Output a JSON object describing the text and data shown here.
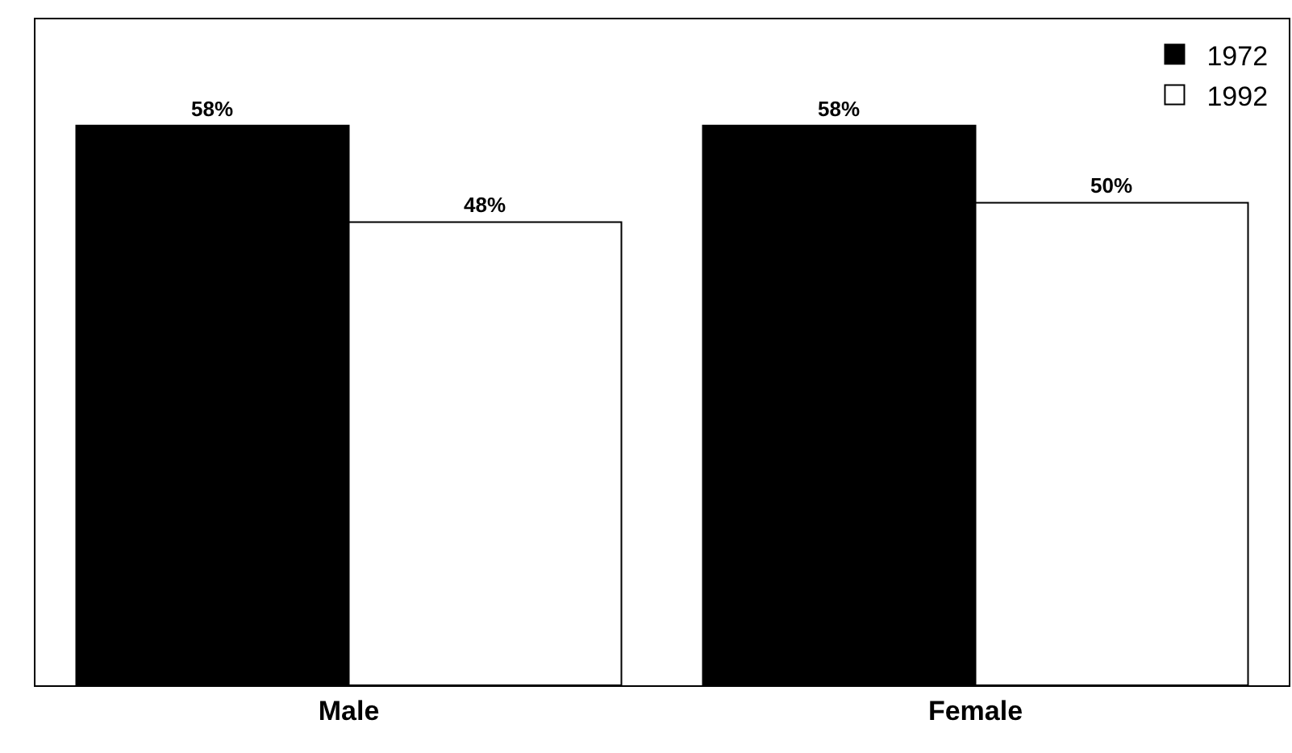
{
  "chart_data": {
    "type": "bar",
    "categories": [
      "Male",
      "Female"
    ],
    "series": [
      {
        "name": "1972",
        "color": "#000000",
        "values": [
          58,
          58
        ],
        "value_labels": [
          "58%",
          "58%"
        ]
      },
      {
        "name": "1992",
        "color": "#ffffff",
        "values": [
          48,
          50
        ],
        "value_labels": [
          "48%",
          "50%"
        ]
      }
    ],
    "ylim": [
      0,
      69
    ],
    "tick_labels": "x",
    "legend": "top right"
  }
}
